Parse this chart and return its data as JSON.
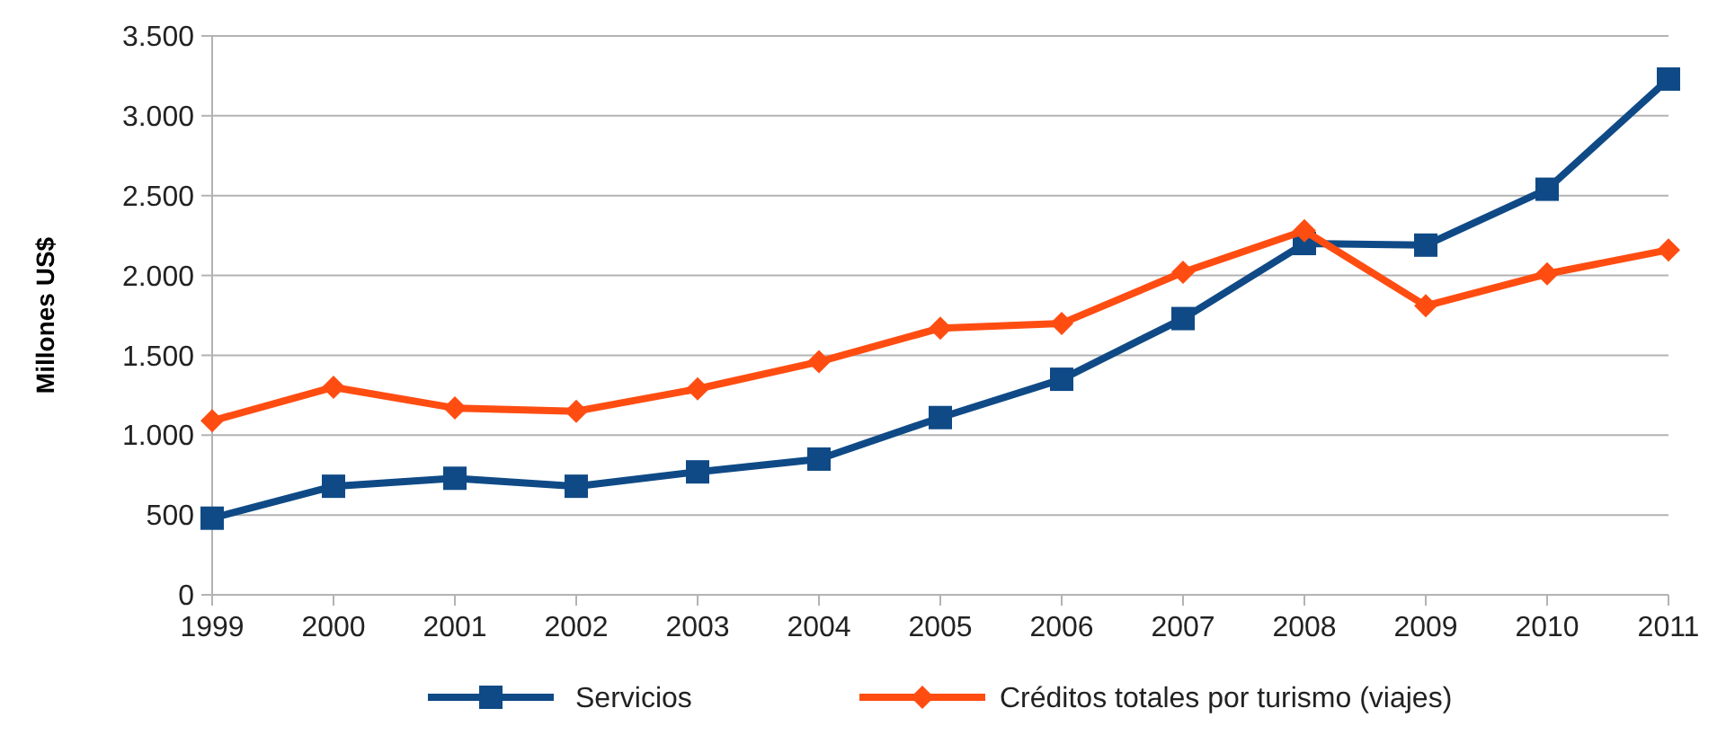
{
  "chart_data": {
    "type": "line",
    "ylabel": "Millones US$",
    "categories": [
      "1999",
      "2000",
      "2001",
      "2002",
      "2003",
      "2004",
      "2005",
      "2006",
      "2007",
      "2008",
      "2009",
      "2010",
      "2011"
    ],
    "series": [
      {
        "name": "Servicios",
        "color": "#0f4a86",
        "marker": "square",
        "values": [
          480,
          680,
          730,
          680,
          770,
          850,
          1110,
          1350,
          1730,
          2200,
          2190,
          2540,
          3230
        ]
      },
      {
        "name": "Créditos totales por turismo (viajes)",
        "color": "#ff4d12",
        "marker": "diamond",
        "values": [
          1090,
          1300,
          1170,
          1150,
          1290,
          1460,
          1670,
          1700,
          2020,
          2280,
          1810,
          2010,
          2160
        ]
      }
    ],
    "ylim": [
      0,
      3500
    ],
    "yticks": [
      0,
      500,
      {
        "value": 1000,
        "label": "1.000"
      },
      {
        "value": 1500,
        "label": "1.500"
      },
      {
        "value": 2000,
        "label": "2.000"
      },
      {
        "value": 2500,
        "label": "2.500"
      },
      {
        "value": 3000,
        "label": "3.000"
      },
      {
        "value": 3500,
        "label": "3.500"
      }
    ],
    "grid": "y",
    "legend": "bottom",
    "line_style": "solid"
  }
}
